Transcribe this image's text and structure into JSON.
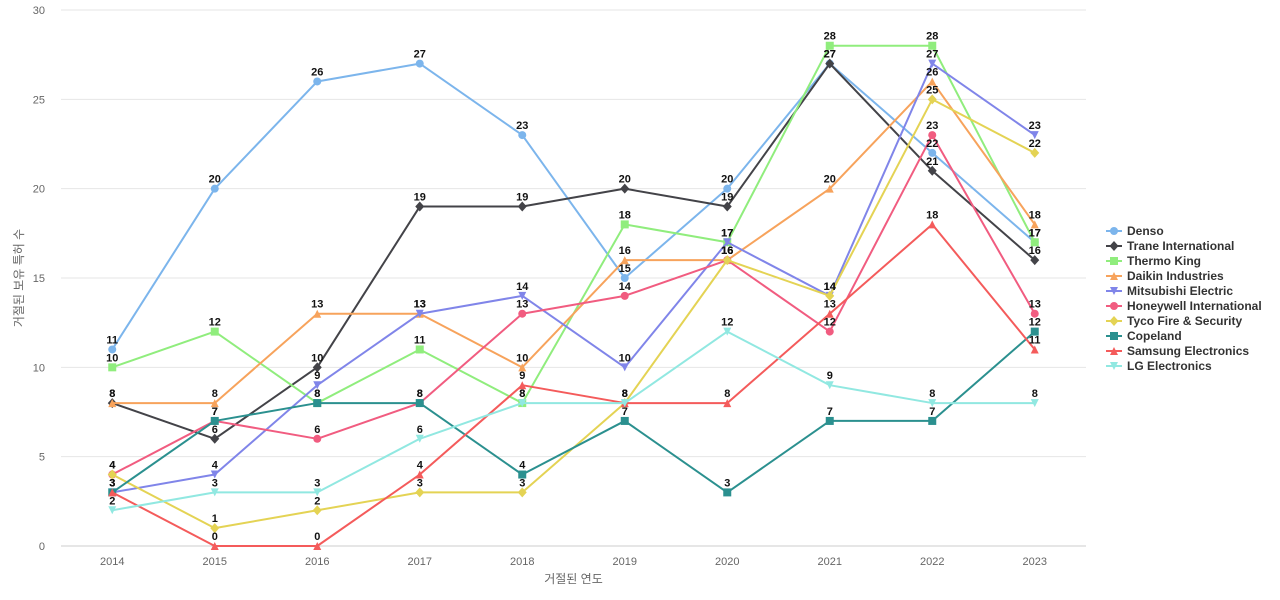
{
  "chart_data": {
    "type": "line",
    "title": "",
    "xlabel": "거절된 연도",
    "ylabel": "거절된 보유 특허 수",
    "categories": [
      "2014",
      "2015",
      "2016",
      "2017",
      "2018",
      "2019",
      "2020",
      "2021",
      "2022",
      "2023"
    ],
    "ylim": [
      0,
      30
    ],
    "yticks": [
      0,
      5,
      10,
      15,
      20,
      25,
      30
    ],
    "grid": true,
    "legend_position": "right",
    "series": [
      {
        "name": "Denso",
        "color": "#7cb5ec",
        "marker": "circle",
        "values": [
          11,
          20,
          26,
          27,
          23,
          15,
          20,
          27,
          22,
          17
        ]
      },
      {
        "name": "Trane International",
        "color": "#434348",
        "marker": "diamond",
        "values": [
          8,
          6,
          10,
          19,
          19,
          20,
          19,
          27,
          21,
          16
        ]
      },
      {
        "name": "Thermo King",
        "color": "#90ed7d",
        "marker": "square",
        "values": [
          10,
          12,
          8,
          11,
          8,
          18,
          17,
          28,
          28,
          17
        ]
      },
      {
        "name": "Daikin Industries",
        "color": "#f7a35c",
        "marker": "triangle",
        "values": [
          8,
          8,
          13,
          13,
          10,
          16,
          16,
          20,
          26,
          18
        ]
      },
      {
        "name": "Mitsubishi Electric",
        "color": "#8085e9",
        "marker": "triangle-down",
        "values": [
          3,
          4,
          9,
          13,
          14,
          10,
          17,
          14,
          27,
          23
        ]
      },
      {
        "name": "Honeywell International",
        "color": "#f15c80",
        "marker": "circle",
        "values": [
          4,
          7,
          6,
          8,
          13,
          14,
          16,
          12,
          23,
          13
        ]
      },
      {
        "name": "Tyco Fire & Security",
        "color": "#e4d354",
        "marker": "diamond",
        "values": [
          4,
          1,
          2,
          3,
          3,
          8,
          16,
          14,
          25,
          22
        ]
      },
      {
        "name": "Copeland",
        "color": "#2b908f",
        "marker": "square",
        "values": [
          3,
          7,
          8,
          8,
          4,
          7,
          3,
          7,
          7,
          12
        ]
      },
      {
        "name": "Samsung Electronics",
        "color": "#f45b5b",
        "marker": "triangle",
        "values": [
          3,
          0,
          0,
          4,
          9,
          8,
          8,
          13,
          18,
          11
        ]
      },
      {
        "name": "LG Electronics",
        "color": "#91e8e1",
        "marker": "triangle-down",
        "values": [
          2,
          3,
          3,
          6,
          8,
          8,
          12,
          9,
          8,
          8
        ]
      }
    ]
  }
}
